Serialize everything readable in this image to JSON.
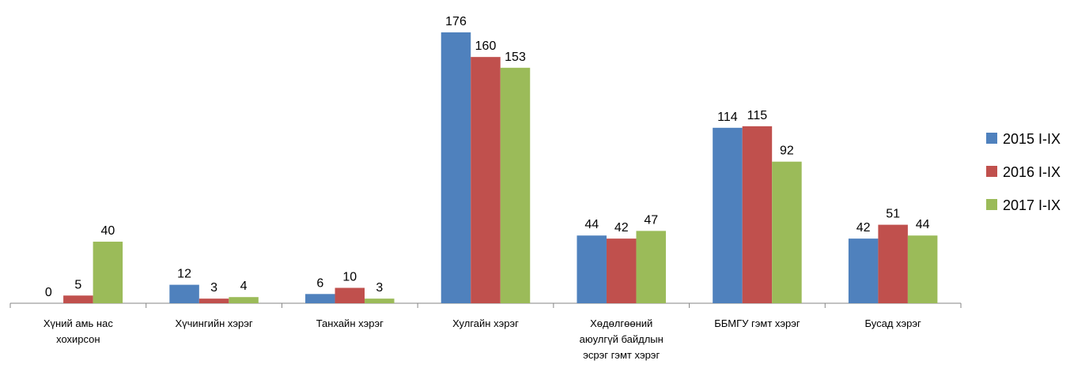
{
  "chart_data": {
    "type": "bar",
    "title": "",
    "xlabel": "",
    "ylabel": "",
    "ylim": [
      0,
      180
    ],
    "grid": false,
    "legend": "right",
    "categories": [
      [
        "Хүний амь нас",
        "хохирсон"
      ],
      [
        "Хүчингийн хэрэг"
      ],
      [
        "Танхайн хэрэг"
      ],
      [
        "Хулгайн хэрэг"
      ],
      [
        "Хөдөлгөөний",
        "аюулгүй байдлын",
        "эсрэг гэмт хэрэг"
      ],
      [
        "ББМГУ гэмт хэрэг"
      ],
      [
        "Бусад хэрэг"
      ]
    ],
    "series": [
      {
        "name": "2015 I-IX",
        "color": "#4F81BD",
        "values": [
          0,
          12,
          6,
          176,
          44,
          114,
          42
        ]
      },
      {
        "name": "2016 I-IX",
        "color": "#C0504D",
        "values": [
          5,
          3,
          10,
          160,
          42,
          115,
          51
        ]
      },
      {
        "name": "2017 I-IX",
        "color": "#9BBB59",
        "values": [
          40,
          4,
          3,
          153,
          47,
          92,
          44
        ]
      }
    ]
  }
}
